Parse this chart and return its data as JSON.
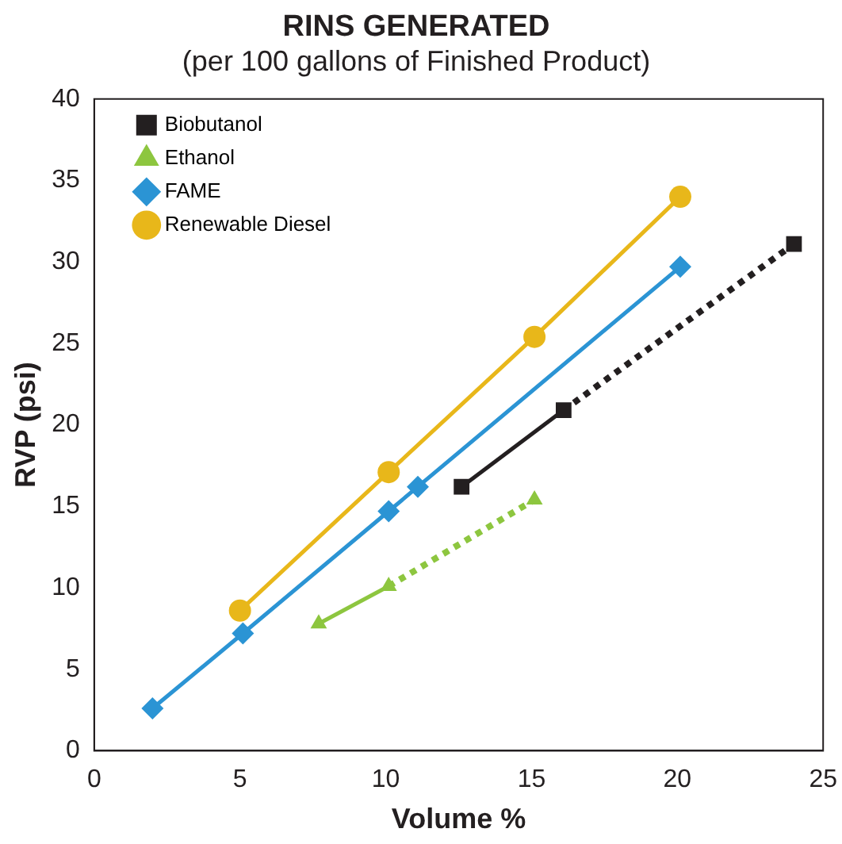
{
  "chart_data": {
    "type": "line",
    "title": "RINS GENERATED",
    "subtitle": "(per 100 gallons of Finished Product)",
    "xlabel": "Volume %",
    "ylabel": "RVP (psi)",
    "xlim": [
      0,
      25
    ],
    "ylim": [
      0,
      40
    ],
    "xticks": [
      0,
      5,
      10,
      15,
      20,
      25
    ],
    "yticks": [
      0,
      5,
      10,
      15,
      20,
      25,
      30,
      35,
      40
    ],
    "grid": false,
    "legend": "top left",
    "series": [
      {
        "name": "Biobutanol",
        "color": "#231f20",
        "marker": "square",
        "line_style": "solid",
        "x": [
          12.6,
          16.1
        ],
        "values": [
          16.2,
          20.9
        ]
      },
      {
        "name": "Ethanol",
        "color": "#8dc63f",
        "marker": "triangle",
        "line_style": "solid",
        "x": [
          7.7,
          10.1
        ],
        "values": [
          7.8,
          10.1
        ]
      },
      {
        "name": "FAME",
        "color": "#2b94d4",
        "marker": "diamond",
        "line_style": "solid",
        "x": [
          2,
          5.1,
          10.1,
          11.1,
          20.1
        ],
        "values": [
          2.6,
          7.2,
          14.7,
          16.2,
          29.7
        ]
      },
      {
        "name": "Renewable Diesel",
        "color": "#e8b71a",
        "marker": "circle",
        "line_style": "solid",
        "x": [
          5,
          10.1,
          15.1,
          20.1
        ],
        "values": [
          8.6,
          17.1,
          25.4,
          34
        ]
      },
      {
        "color": "#231f20",
        "marker": "square",
        "line_style": "dotted",
        "x": [
          16.1,
          24
        ],
        "values": [
          20.9,
          31.1
        ]
      },
      {
        "color": "#8dc63f",
        "marker": "triangle",
        "line_style": "dotted",
        "x": [
          10.1,
          15.1
        ],
        "values": [
          10.1,
          15.4
        ]
      }
    ]
  }
}
